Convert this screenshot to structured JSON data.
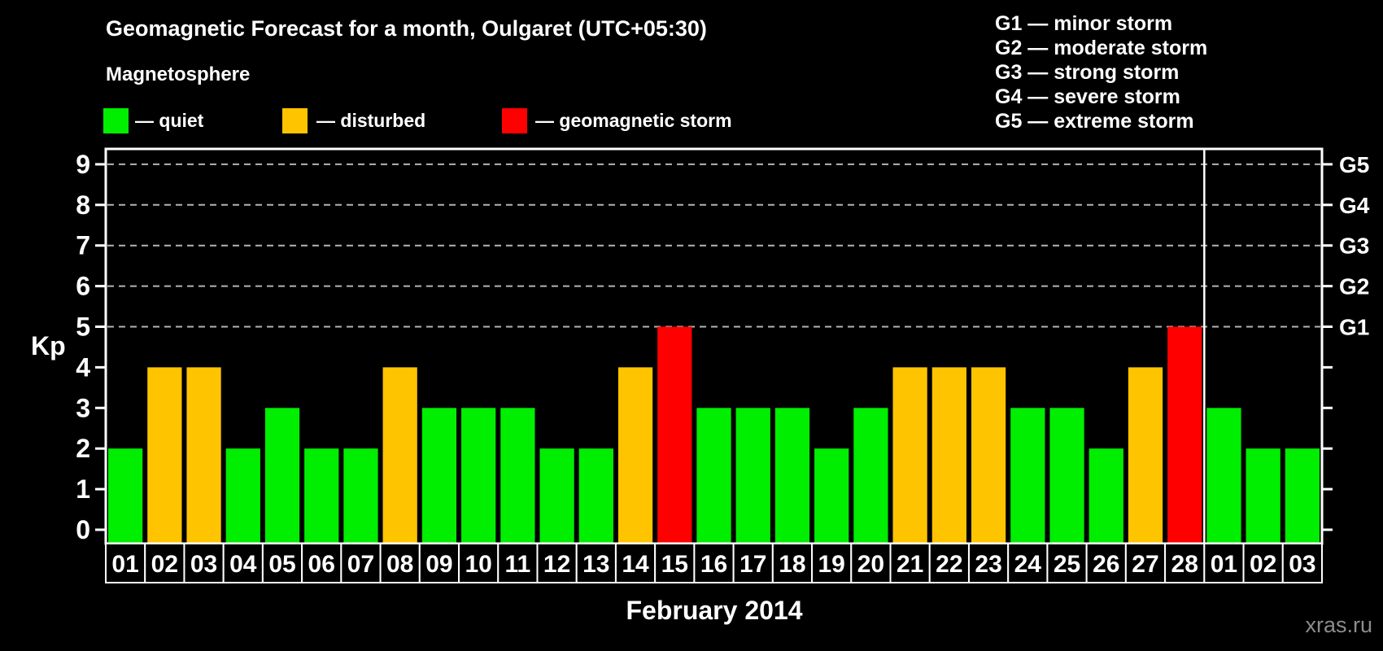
{
  "header": {
    "title": "Geomagnetic Forecast for a month, Oulgaret (UTC+05:30)",
    "legend_title": "Magnetosphere",
    "legend": [
      {
        "key": "quiet",
        "label": "— quiet"
      },
      {
        "key": "disturbed",
        "label": "— disturbed"
      },
      {
        "key": "storm",
        "label": "— geomagnetic storm"
      }
    ],
    "g_scale": [
      "G1 — minor storm",
      "G2 — moderate storm",
      "G3 — strong storm",
      "G4 — severe storm",
      "G5 — extreme storm"
    ]
  },
  "axis": {
    "kp_label": "Kp",
    "month_label": "February 2014"
  },
  "watermark": "xras.ru",
  "colors": {
    "background": "#000000",
    "quiet": "#00ee00",
    "disturbed": "#ffc400",
    "storm": "#ff0000",
    "axis": "#ffffff",
    "grid": "#b4b4b4",
    "watermark": "#8c8c8c"
  },
  "chart_data": {
    "type": "bar",
    "title": "Geomagnetic Forecast for a month, Oulgaret (UTC+05:30)",
    "xlabel": "February 2014",
    "ylabel": "Kp",
    "ylim": [
      0,
      9
    ],
    "yticks": [
      0,
      1,
      2,
      3,
      4,
      5,
      6,
      7,
      8,
      9
    ],
    "grid": "dashed horizontal lines at Kp 5-9 only",
    "legend_position": "top-left",
    "right_axis": [
      {
        "kp": 5,
        "label": "G1"
      },
      {
        "kp": 6,
        "label": "G2"
      },
      {
        "kp": 7,
        "label": "G3"
      },
      {
        "kp": 8,
        "label": "G4"
      },
      {
        "kp": 9,
        "label": "G5"
      }
    ],
    "categories": [
      "01",
      "02",
      "03",
      "04",
      "05",
      "06",
      "07",
      "08",
      "09",
      "10",
      "11",
      "12",
      "13",
      "14",
      "15",
      "16",
      "17",
      "18",
      "19",
      "20",
      "21",
      "22",
      "23",
      "24",
      "25",
      "26",
      "27",
      "28",
      "01",
      "02",
      "03"
    ],
    "values": [
      2,
      4,
      4,
      2,
      3,
      2,
      2,
      4,
      3,
      3,
      3,
      2,
      2,
      4,
      5,
      3,
      3,
      3,
      2,
      3,
      4,
      4,
      4,
      3,
      3,
      2,
      4,
      5,
      3,
      2,
      2
    ],
    "statuses": [
      "quiet",
      "disturbed",
      "disturbed",
      "quiet",
      "quiet",
      "quiet",
      "quiet",
      "disturbed",
      "quiet",
      "quiet",
      "quiet",
      "quiet",
      "quiet",
      "disturbed",
      "storm",
      "quiet",
      "quiet",
      "quiet",
      "quiet",
      "quiet",
      "disturbed",
      "disturbed",
      "disturbed",
      "quiet",
      "quiet",
      "quiet",
      "disturbed",
      "storm",
      "quiet",
      "quiet",
      "quiet"
    ],
    "month_separator_after_index": 27
  }
}
